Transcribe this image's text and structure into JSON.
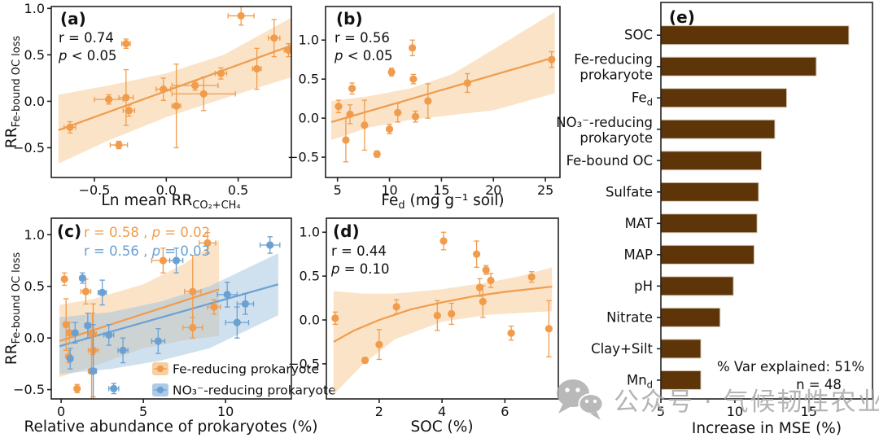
{
  "figure": {
    "watermark": {
      "text": "公众号 · 气候韧性农业",
      "icon": "wechat-icon",
      "color": "#a8a8a8"
    },
    "colors": {
      "orange": "#F09C4C",
      "orange_band": "#F6C890",
      "blue": "#6BA1D2",
      "blue_band": "#9FC2E0",
      "bar": "#5E3508",
      "bar_edge": "#D8CCBC",
      "text": "#111111",
      "axis": "#222222"
    }
  },
  "chart_data": [
    {
      "id": "a",
      "type": "scatter",
      "label": "(a)",
      "annotations": [
        {
          "text": "r = 0.74"
        },
        {
          "text": "p < 0.05"
        }
      ],
      "xlabel": "Ln mean RR~CO₂+CH₄~",
      "ylabel": "RR~Fe-bound OC loss~",
      "xlim": [
        -0.8,
        0.87
      ],
      "ylim": [
        -0.82,
        1.02
      ],
      "xticks": [
        [
          -0.5,
          "−0.5"
        ],
        [
          0,
          "0.0"
        ],
        [
          0.5,
          "0.5"
        ]
      ],
      "yticks": [
        [
          1,
          "1.0"
        ],
        [
          0.5,
          "0.5"
        ],
        [
          0,
          "0.0"
        ],
        [
          -0.5,
          "−0.5"
        ]
      ],
      "series": [
        {
          "name": "Fe-reducing prokaryote",
          "color_key": "orange",
          "points": [
            [
              -0.67,
              -0.28,
              0.04,
              0.06
            ],
            [
              -0.4,
              0.02,
              0.1,
              0.05
            ],
            [
              -0.33,
              -0.47,
              0.06,
              0.04
            ],
            [
              -0.28,
              0.04,
              0.05,
              0.3
            ],
            [
              -0.26,
              -0.1,
              0.04,
              0.06
            ],
            [
              -0.28,
              0.62,
              0.03,
              0.05
            ],
            [
              -0.02,
              0.13,
              0.05,
              0.12
            ],
            [
              0.07,
              -0.05,
              0.03,
              0.45
            ],
            [
              0.2,
              0.17,
              0.16,
              0.05
            ],
            [
              0.26,
              0.08,
              0.22,
              0.18
            ],
            [
              0.38,
              0.3,
              0.04,
              0.06
            ],
            [
              0.52,
              0.92,
              0.09,
              0.1
            ],
            [
              0.63,
              0.35,
              0.03,
              0.22
            ],
            [
              0.75,
              0.68,
              0.04,
              0.2
            ],
            [
              0.85,
              0.55,
              0.03,
              0.07
            ]
          ],
          "trend": [
            [
              -0.75,
              -0.31
            ],
            [
              0.87,
              0.6
            ]
          ],
          "band_upper": [
            [
              -0.75,
              0.07
            ],
            [
              -0.4,
              0.17
            ],
            [
              0,
              0.3
            ],
            [
              0.4,
              0.5
            ],
            [
              0.87,
              0.9
            ]
          ],
          "band_lower": [
            [
              -0.75,
              -0.67
            ],
            [
              -0.4,
              -0.42
            ],
            [
              0,
              -0.17
            ],
            [
              0.4,
              0.03
            ],
            [
              0.87,
              0.26
            ]
          ]
        }
      ]
    },
    {
      "id": "b",
      "type": "scatter",
      "label": "(b)",
      "annotations": [
        {
          "text": "r = 0.56"
        },
        {
          "text": "p < 0.05"
        }
      ],
      "xlabel": "Fe~d~ (mg g⁻¹ soil)",
      "ylabel": null,
      "xlim": [
        3.85,
        26.4
      ],
      "ylim": [
        -0.76,
        1.43
      ],
      "xticks": [
        [
          5,
          "5"
        ],
        [
          10,
          "10"
        ],
        [
          15,
          "15"
        ],
        [
          20,
          "20"
        ],
        [
          25,
          "25"
        ]
      ],
      "yticks": [
        [
          1,
          "1.0"
        ],
        [
          0.5,
          "0.5"
        ],
        [
          0,
          "0.0"
        ],
        [
          -0.5,
          "−0.5"
        ]
      ],
      "series": [
        {
          "name": "Fe-reducing prokaryote",
          "color_key": "orange",
          "points": [
            [
              5.1,
              0.15,
              0,
              0.08
            ],
            [
              5.8,
              -0.28,
              0,
              0.28
            ],
            [
              6.2,
              0.05,
              0,
              0.12
            ],
            [
              6.4,
              0.38,
              0,
              0.07
            ],
            [
              7.6,
              -0.09,
              0,
              0.32
            ],
            [
              8.8,
              -0.46,
              0,
              0.04
            ],
            [
              10.0,
              -0.14,
              0,
              0.06
            ],
            [
              10.2,
              0.59,
              0,
              0.05
            ],
            [
              10.8,
              0.07,
              0,
              0.12
            ],
            [
              12.2,
              0.9,
              0,
              0.1
            ],
            [
              12.3,
              0.5,
              0,
              0.06
            ],
            [
              12.5,
              0.02,
              0,
              0.07
            ],
            [
              13.7,
              0.22,
              0,
              0.22
            ],
            [
              17.5,
              0.45,
              0,
              0.12
            ],
            [
              25.6,
              0.75,
              0,
              0.1
            ]
          ],
          "trend": [
            [
              4.4,
              -0.05
            ],
            [
              25.9,
              0.78
            ]
          ],
          "band_upper": [
            [
              4.4,
              0.22
            ],
            [
              8,
              0.28
            ],
            [
              12,
              0.38
            ],
            [
              16,
              0.56
            ],
            [
              20,
              0.88
            ],
            [
              25.9,
              1.36
            ]
          ],
          "band_lower": [
            [
              4.4,
              -0.28
            ],
            [
              8,
              -0.12
            ],
            [
              12,
              -0.02
            ],
            [
              16,
              0.04
            ],
            [
              20,
              0.1
            ],
            [
              25.9,
              0.32
            ]
          ]
        }
      ]
    },
    {
      "id": "c",
      "type": "scatter",
      "label": "(c)",
      "legend": true,
      "annotations": [
        {
          "text": "r = 0.58 , p = 0.02",
          "color_key": "orange"
        },
        {
          "text": "r = 0.56 , p = 0.03",
          "color_key": "blue"
        }
      ],
      "xlabel": "Relative abundance of prokaryotes (%)",
      "ylabel": "RR~Fe-bound OC loss~",
      "xlim": [
        -0.6,
        14.0
      ],
      "ylim": [
        -0.59,
        1.16
      ],
      "xticks": [
        [
          0,
          "0"
        ],
        [
          5,
          "5"
        ],
        [
          10,
          "10"
        ]
      ],
      "yticks": [
        [
          1,
          "1.0"
        ],
        [
          0.5,
          "0.5"
        ],
        [
          0,
          "0.0"
        ],
        [
          -0.5,
          "−0.5"
        ]
      ],
      "series": [
        {
          "name": "Fe-reducing prokaryote",
          "color_key": "orange",
          "points": [
            [
              0.2,
              0.57,
              0.1,
              0.06
            ],
            [
              0.3,
              0.13,
              0.12,
              0.25
            ],
            [
              0.5,
              0.05,
              0.1,
              0.1
            ],
            [
              0.46,
              -0.18,
              0.08,
              0.06
            ],
            [
              0.97,
              -0.49,
              0.12,
              0.04
            ],
            [
              1.5,
              0.45,
              0.3,
              0.12
            ],
            [
              1.9,
              0.04,
              0.25,
              0.2
            ],
            [
              1.95,
              -0.12,
              0.3,
              0.45
            ],
            [
              1.85,
              -0.32,
              0.2,
              0.4
            ],
            [
              6.2,
              0.75,
              0.7,
              0.12
            ],
            [
              8.0,
              0.45,
              0.5,
              0.35
            ],
            [
              8.0,
              0.1,
              0.6,
              0.1
            ],
            [
              8.9,
              0.92,
              0.5,
              0.1
            ],
            [
              9.3,
              0.3,
              0.4,
              0.07
            ]
          ],
          "trend": [
            [
              -0.1,
              -0.03
            ],
            [
              9.6,
              0.47
            ]
          ],
          "band_upper": [
            [
              -0.1,
              0.32
            ],
            [
              2,
              0.38
            ],
            [
              5,
              0.52
            ],
            [
              7.5,
              0.72
            ],
            [
              9.6,
              0.95
            ]
          ],
          "band_lower": [
            [
              -0.1,
              -0.38
            ],
            [
              2,
              -0.27
            ],
            [
              5,
              -0.1
            ],
            [
              7.5,
              -0.02
            ],
            [
              9.6,
              0.02
            ]
          ]
        },
        {
          "name": "NO₃⁻-reducing prokaryote",
          "color_key": "blue",
          "points": [
            [
              0.55,
              -0.2,
              0.08,
              0.1
            ],
            [
              0.85,
              0.05,
              0.12,
              0.1
            ],
            [
              1.3,
              0.58,
              0.15,
              0.05
            ],
            [
              1.62,
              0.12,
              0.18,
              0.12
            ],
            [
              1.95,
              -0.32,
              0.2,
              0.45
            ],
            [
              2.5,
              0.44,
              0.25,
              0.12
            ],
            [
              2.9,
              0.03,
              0.3,
              0.1
            ],
            [
              3.2,
              -0.49,
              0.3,
              0.05
            ],
            [
              3.76,
              -0.12,
              0.3,
              0.12
            ],
            [
              5.9,
              -0.03,
              0.4,
              0.12
            ],
            [
              7.0,
              0.75,
              0.4,
              0.12
            ],
            [
              10.1,
              0.42,
              0.6,
              0.12
            ],
            [
              10.7,
              0.15,
              0.7,
              0.15
            ],
            [
              11.2,
              0.33,
              0.5,
              0.1
            ],
            [
              12.7,
              0.9,
              0.6,
              0.08
            ]
          ],
          "trend": [
            [
              -0.1,
              -0.08
            ],
            [
              13.2,
              0.52
            ]
          ],
          "band_upper": [
            [
              -0.1,
              0.2
            ],
            [
              3,
              0.25
            ],
            [
              6,
              0.35
            ],
            [
              9,
              0.5
            ],
            [
              13.2,
              0.82
            ]
          ],
          "band_lower": [
            [
              -0.1,
              -0.35
            ],
            [
              3,
              -0.3
            ],
            [
              6,
              -0.22
            ],
            [
              9,
              -0.1
            ],
            [
              13.2,
              0.22
            ]
          ]
        }
      ]
    },
    {
      "id": "d",
      "type": "scatter",
      "label": "(d)",
      "annotations": [
        {
          "text": "r = 0.44"
        },
        {
          "text": "p = 0.10"
        }
      ],
      "xlabel": "SOC (%)",
      "ylabel": null,
      "xlim": [
        0.32,
        7.7
      ],
      "ylim": [
        -0.9,
        1.16
      ],
      "xticks": [
        [
          2,
          "2"
        ],
        [
          4,
          "4"
        ],
        [
          6,
          "6"
        ]
      ],
      "yticks": [
        [
          1,
          "1.0"
        ],
        [
          0.5,
          "0.5"
        ],
        [
          0,
          "0.0"
        ],
        [
          -0.5,
          "−0.5"
        ]
      ],
      "series": [
        {
          "name": "Fe-reducing prokaryote",
          "color_key": "orange",
          "points": [
            [
              0.6,
              0.02,
              0,
              0.07
            ],
            [
              1.55,
              -0.46,
              0,
              0.03
            ],
            [
              2.0,
              -0.28,
              0,
              0.17
            ],
            [
              2.55,
              0.15,
              0,
              0.08
            ],
            [
              3.85,
              0.05,
              0,
              0.17
            ],
            [
              4.05,
              0.9,
              0,
              0.1
            ],
            [
              4.3,
              0.07,
              0,
              0.12
            ],
            [
              5.1,
              0.75,
              0,
              0.15
            ],
            [
              5.2,
              0.37,
              0,
              0.1
            ],
            [
              5.3,
              0.21,
              0,
              0.18
            ],
            [
              5.4,
              0.57,
              0,
              0.05
            ],
            [
              5.55,
              0.45,
              0,
              0.08
            ],
            [
              6.2,
              -0.15,
              0,
              0.08
            ],
            [
              6.85,
              0.49,
              0,
              0.06
            ],
            [
              7.4,
              -0.1,
              0,
              0.32
            ]
          ],
          "trend": [
            [
              0.55,
              -0.25
            ],
            [
              1.2,
              -0.12
            ],
            [
              2,
              0.0
            ],
            [
              3,
              0.12
            ],
            [
              4,
              0.2
            ],
            [
              5,
              0.27
            ],
            [
              6,
              0.32
            ],
            [
              7.5,
              0.38
            ]
          ],
          "band_upper": [
            [
              0.55,
              0.33
            ],
            [
              1.5,
              0.3
            ],
            [
              2.5,
              0.3
            ],
            [
              4,
              0.35
            ],
            [
              5.5,
              0.43
            ],
            [
              6.5,
              0.5
            ],
            [
              7.5,
              0.6
            ]
          ],
          "band_lower": [
            [
              0.55,
              -0.85
            ],
            [
              1.5,
              -0.5
            ],
            [
              2.5,
              -0.22
            ],
            [
              4,
              -0.02
            ],
            [
              5.5,
              0.06
            ],
            [
              6.5,
              0.08
            ],
            [
              7.5,
              0.1
            ]
          ]
        }
      ]
    },
    {
      "id": "e",
      "type": "bar",
      "label": "(e)",
      "xlabel": "Increase in MSE (%)",
      "xlim": [
        5,
        19.3
      ],
      "xticks": [
        [
          5,
          "5"
        ],
        [
          10,
          "10"
        ],
        [
          15,
          "15"
        ]
      ],
      "categories": [
        "SOC",
        "Fe-reducing\nprokaryote",
        "Fe~d~",
        "NO₃⁻-reducing\nprokaryote",
        "Fe-bound OC",
        "Sulfate",
        "MAT",
        "MAP",
        "pH",
        "Nitrate",
        "Clay+Silt",
        "Mn~d~"
      ],
      "values": [
        17.7,
        15.5,
        13.5,
        12.7,
        11.8,
        11.6,
        11.5,
        11.3,
        9.9,
        9.0,
        7.7,
        7.7
      ],
      "annotation_lines": [
        "% Var explained: 51%",
        "n = 48"
      ]
    }
  ]
}
